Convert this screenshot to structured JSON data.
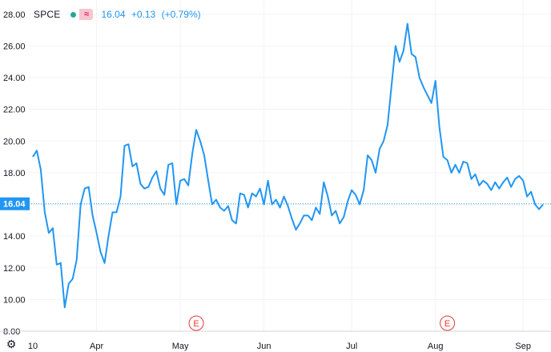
{
  "legend": {
    "symbol": "SPCE",
    "indicator_icon": "dot-icon",
    "wave_icon": "wave-icon",
    "wave_glyph": "≈",
    "last": "16.04",
    "change": "+0.13",
    "change_pct": "(+0.79%)"
  },
  "settings_icon": "gear-icon",
  "colors": {
    "line": "#2196f3",
    "grid": "#f0f3fa",
    "axis_text": "#131722",
    "price_tag": "#2196f3",
    "earnings": "#e53935",
    "dot": "#26a69a"
  },
  "chart_data": {
    "type": "line",
    "title": "",
    "xlabel": "",
    "ylabel": "",
    "ylim": [
      8,
      28.9
    ],
    "y_ticks": [
      "8.00",
      "10.00",
      "12.00",
      "14.00",
      "16.00",
      "18.00",
      "20.00",
      "22.00",
      "24.00",
      "26.00",
      "28.00"
    ],
    "x_ticks": [
      {
        "label": "10",
        "x": 0
      },
      {
        "label": "Apr",
        "x": 16
      },
      {
        "label": "May",
        "x": 37
      },
      {
        "label": "Jun",
        "x": 58
      },
      {
        "label": "Jul",
        "x": 80
      },
      {
        "label": "Aug",
        "x": 101
      },
      {
        "label": "Sep",
        "x": 123
      }
    ],
    "x_range": [
      -1,
      130
    ],
    "last_price_label": "16.04",
    "last_price": 16.04,
    "earnings_markers": [
      {
        "label": "E",
        "x": 41
      },
      {
        "label": "E",
        "x": 104
      }
    ],
    "series": [
      {
        "x": [
          0,
          1,
          2,
          3,
          4,
          5,
          6,
          7,
          8,
          9,
          10,
          11,
          12,
          13,
          14,
          15,
          16,
          17,
          18,
          19,
          20,
          21,
          22,
          23,
          24,
          25,
          26,
          27,
          28,
          29,
          30,
          31,
          32,
          33,
          34,
          35,
          36,
          37,
          38,
          39,
          40,
          41,
          42,
          43,
          44,
          45,
          46,
          47,
          48,
          49,
          50,
          51,
          52,
          53,
          54,
          55,
          56,
          57,
          58,
          59,
          60,
          61,
          62,
          63,
          64,
          65,
          66,
          67,
          68,
          69,
          70,
          71,
          72,
          73,
          74,
          75,
          76,
          77,
          78,
          79,
          80,
          81,
          82,
          83,
          84,
          85,
          86,
          87,
          88,
          89,
          90,
          91,
          92,
          93,
          94,
          95,
          96,
          97,
          98,
          99,
          100,
          101,
          102,
          103,
          104,
          105,
          106,
          107,
          108,
          109,
          110,
          111,
          112,
          113,
          114,
          115,
          116,
          117,
          118,
          119,
          120,
          121,
          122,
          123,
          124,
          125,
          126,
          127,
          128
        ],
        "values": [
          19.0,
          19.4,
          18.2,
          15.5,
          14.2,
          14.5,
          12.2,
          12.3,
          9.5,
          11.0,
          11.3,
          12.5,
          16.0,
          17.0,
          17.1,
          15.3,
          14.2,
          13.0,
          12.3,
          14.0,
          15.5,
          15.5,
          16.5,
          19.7,
          19.8,
          18.4,
          18.6,
          17.3,
          17.0,
          17.1,
          17.7,
          18.1,
          17.0,
          16.6,
          18.5,
          18.6,
          16.0,
          17.5,
          17.6,
          17.2,
          19.2,
          20.7,
          20.0,
          19.1,
          17.5,
          16.0,
          16.3,
          15.8,
          15.6,
          15.9,
          15.0,
          14.8,
          16.7,
          16.6,
          15.8,
          16.7,
          16.5,
          17.0,
          16.0,
          17.5,
          16.0,
          16.3,
          15.8,
          16.5,
          15.9,
          15.1,
          14.4,
          14.8,
          15.3,
          15.3,
          15.0,
          15.8,
          15.4,
          17.4,
          16.5,
          15.3,
          15.6,
          14.8,
          15.2,
          16.2,
          16.9,
          16.6,
          16.0,
          16.9,
          19.1,
          18.8,
          18.0,
          19.5,
          20.0,
          21.0,
          23.5,
          26.0,
          25.0,
          25.7,
          27.4,
          25.5,
          25.3,
          24.0,
          23.4,
          22.9,
          22.4,
          23.8,
          20.9,
          19.0,
          18.8,
          18.0,
          18.5,
          18.0,
          18.7,
          18.6,
          17.6,
          17.9,
          17.2,
          17.5,
          17.3,
          16.9,
          17.4,
          17.0,
          17.4,
          17.7,
          17.1,
          17.6,
          17.8,
          17.5,
          16.5,
          16.8,
          16.0,
          15.7,
          16.0
        ]
      }
    ]
  }
}
